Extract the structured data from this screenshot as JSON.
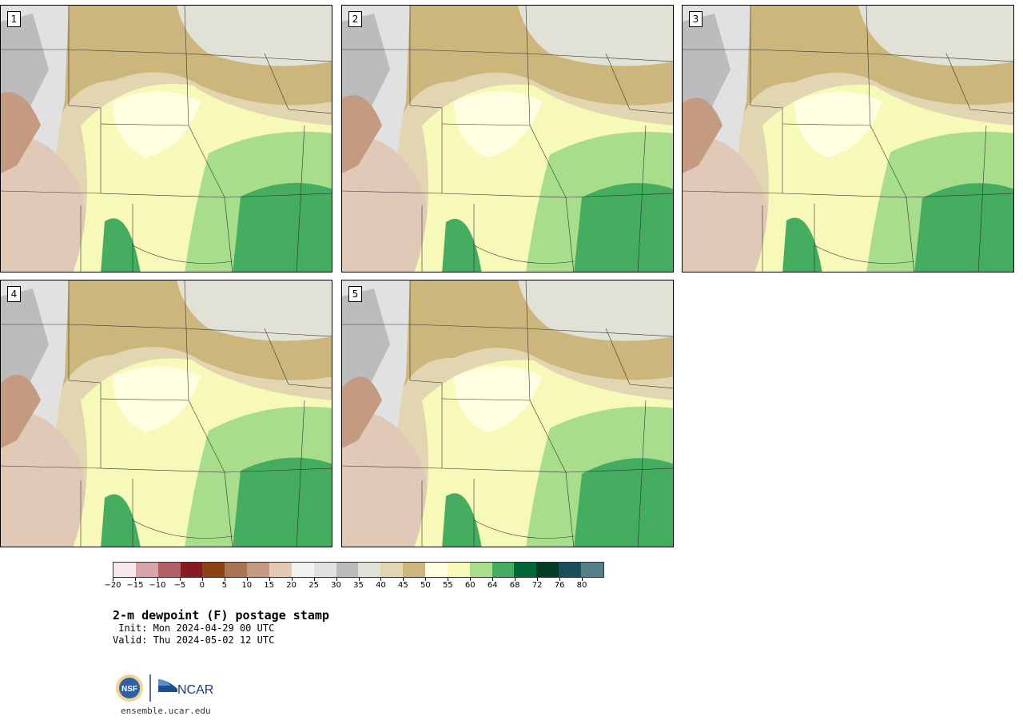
{
  "panels": [
    {
      "label": "1"
    },
    {
      "label": "2"
    },
    {
      "label": "3"
    },
    {
      "label": "4"
    },
    {
      "label": "5"
    }
  ],
  "colorbar": {
    "colors": [
      "#f6e8ea",
      "#d6a4a9",
      "#b15f65",
      "#8a1a22",
      "#8a4413",
      "#a97552",
      "#c49a80",
      "#e0c9b7",
      "#f2f2f2",
      "#e1e1e1",
      "#bcbcbc",
      "#e2e1d6",
      "#e2d5b1",
      "#cdb67c",
      "#fffee0",
      "#f6f9b8",
      "#a7dd8b",
      "#45ad5f",
      "#006836",
      "#003d22",
      "#194f5a",
      "#56808a"
    ],
    "tick_labels": [
      "−20",
      "−15",
      "−10",
      "−5",
      "0",
      "5",
      "10",
      "15",
      "20",
      "25",
      "30",
      "35",
      "40",
      "45",
      "50",
      "55",
      "60",
      "64",
      "68",
      "72",
      "76",
      "80"
    ]
  },
  "title": "2-m dewpoint (F) postage stamp",
  "init": " Init: Mon 2024-04-29 00 UTC",
  "valid": "Valid: Thu 2024-05-02 12 UTC",
  "logos": {
    "nsf": "NSF",
    "ncar": "NCAR"
  },
  "website": "ensemble.ucar.edu"
}
